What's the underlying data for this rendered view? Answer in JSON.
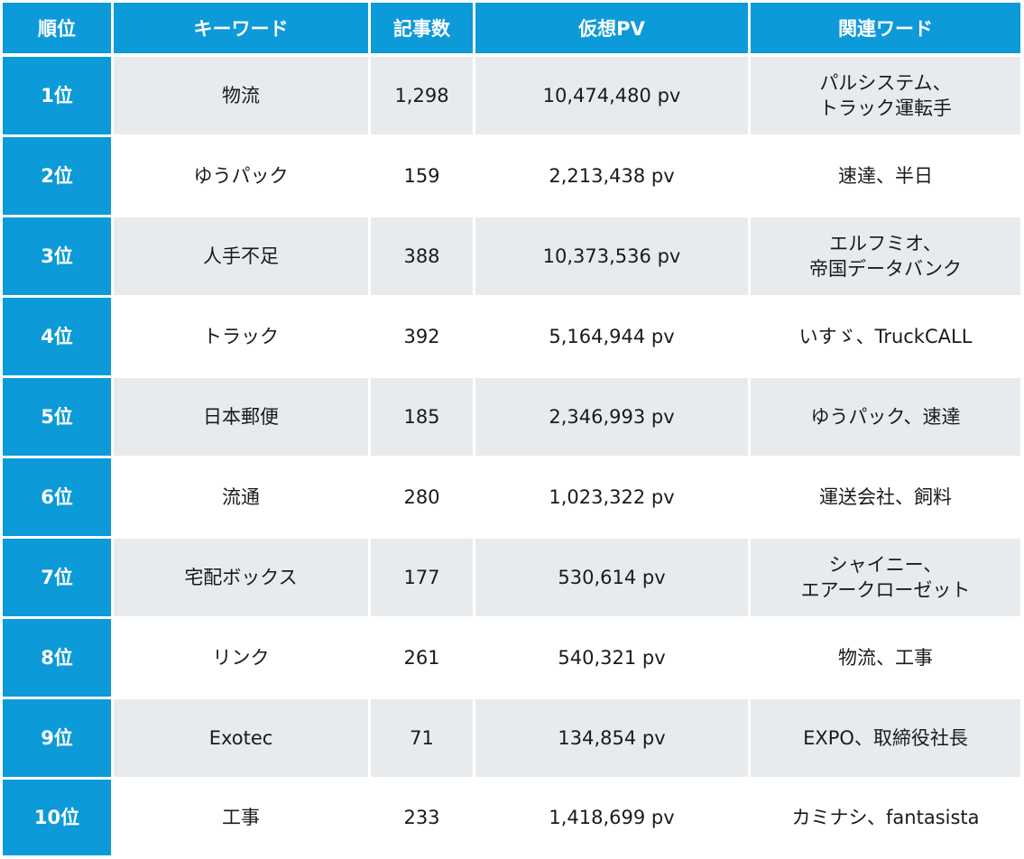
{
  "headers": [
    "順位",
    "キーワード",
    "記事数",
    "仮想PV",
    "関連ワード"
  ],
  "rows": [
    {
      "rank": "1位",
      "keyword": "物流",
      "articles": "1,298",
      "pv": "10,474,480 pv",
      "related": "パルシステム、\nトラック運転手"
    },
    {
      "rank": "2位",
      "keyword": "ゆうパック",
      "articles": "159",
      "pv": "2,213,438 pv",
      "related": "速達、半日"
    },
    {
      "rank": "3位",
      "keyword": "人手不足",
      "articles": "388",
      "pv": "10,373,536 pv",
      "related": "エルフミオ、\n帝国データバンク"
    },
    {
      "rank": "4位",
      "keyword": "トラック",
      "articles": "392",
      "pv": "5,164,944 pv",
      "related": "いすゞ、TruckCALL"
    },
    {
      "rank": "5位",
      "keyword": "日本郵便",
      "articles": "185",
      "pv": "2,346,993 pv",
      "related": "ゆうパック、速達"
    },
    {
      "rank": "6位",
      "keyword": "流通",
      "articles": "280",
      "pv": "1,023,322 pv",
      "related": "運送会社、飼料"
    },
    {
      "rank": "7位",
      "keyword": "宅配ボックス",
      "articles": "177",
      "pv": "530,614 pv",
      "related": "シャイニー、\nエアークローゼット"
    },
    {
      "rank": "8位",
      "keyword": "リンク",
      "articles": "261",
      "pv": "540,321 pv",
      "related": "物流、工事"
    },
    {
      "rank": "9位",
      "keyword": "Exotec",
      "articles": "71",
      "pv": "134,854 pv",
      "related": "EXPO、取締役社長"
    },
    {
      "rank": "10位",
      "keyword": "工事",
      "articles": "233",
      "pv": "1,418,699 pv",
      "related": "カミナシ、fantasista"
    }
  ]
}
